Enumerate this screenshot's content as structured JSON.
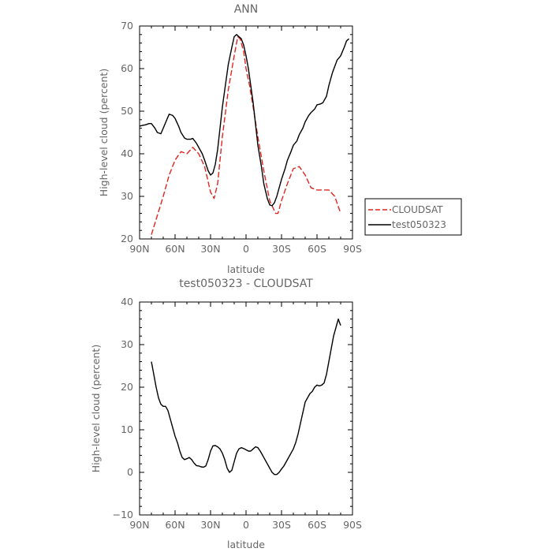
{
  "chart_data": [
    {
      "type": "line",
      "title": "ANN",
      "xlabel": "latitude",
      "ylabel": "High-level cloud (percent)",
      "xlim": [
        90,
        -90
      ],
      "ylim": [
        20,
        70
      ],
      "x_tick_values": [
        90,
        60,
        30,
        0,
        -30,
        -60,
        -90
      ],
      "x_tick_labels": [
        "90N",
        "60N",
        "30N",
        "0",
        "30S",
        "60S",
        "90S"
      ],
      "y_tick_values": [
        20,
        30,
        40,
        50,
        60,
        70
      ],
      "y_tick_labels": [
        "20",
        "30",
        "40",
        "50",
        "60",
        "70"
      ],
      "legend_position": "right",
      "series": [
        {
          "name": "CLOUDSAT",
          "color": "#e0241f",
          "dash": "dashed",
          "x": [
            80,
            75,
            70,
            65,
            60,
            55,
            50,
            45,
            40,
            35,
            30,
            27,
            24,
            20,
            15,
            10,
            7,
            5,
            2,
            0,
            -3,
            -6,
            -10,
            -15,
            -20,
            -25,
            -27,
            -30,
            -35,
            -40,
            -45,
            -50,
            -55,
            -60,
            -65,
            -70,
            -75,
            -80
          ],
          "y": [
            21,
            25.5,
            30,
            35,
            38.5,
            40.5,
            40,
            41.5,
            40,
            37,
            31,
            29.5,
            33,
            44,
            55,
            63,
            67.5,
            67,
            64,
            60,
            56,
            51,
            44,
            36,
            29,
            26,
            26,
            29,
            33,
            36.5,
            37,
            35,
            32,
            31.5,
            31.5,
            31.5,
            30,
            26
          ]
        },
        {
          "name": "test050323",
          "color": "#000000",
          "dash": "solid",
          "x": [
            90,
            87,
            85,
            82,
            80,
            77,
            75,
            72,
            70,
            67,
            65,
            62,
            60,
            57,
            55,
            52,
            50,
            47,
            45,
            42,
            40,
            37,
            35,
            32,
            30,
            28,
            26,
            24,
            22,
            20,
            17,
            15,
            12,
            10,
            8,
            6,
            4,
            2,
            0,
            -2,
            -4,
            -6,
            -8,
            -10,
            -13,
            -15,
            -18,
            -20,
            -22,
            -24,
            -26,
            -28,
            -30,
            -33,
            -35,
            -38,
            -40,
            -43,
            -45,
            -48,
            -50,
            -53,
            -55,
            -58,
            -60,
            -63,
            -65,
            -68,
            -70,
            -73,
            -75,
            -77,
            -80,
            -83,
            -85,
            -87
          ],
          "y": [
            46.5,
            46.7,
            46.8,
            47.1,
            47.1,
            46,
            45,
            44.7,
            46,
            48,
            49.3,
            49,
            48.3,
            46.5,
            45,
            43.7,
            43.4,
            43.4,
            43.6,
            42.5,
            41.5,
            40,
            38.5,
            36,
            35,
            35.5,
            37.5,
            41,
            46,
            51,
            57,
            61,
            65,
            67.5,
            68,
            67.5,
            67,
            65.5,
            63,
            60,
            56,
            52,
            47,
            42,
            37,
            33,
            29.5,
            28,
            27.8,
            28.5,
            30,
            32,
            34,
            36.5,
            38.5,
            40.5,
            42,
            43,
            44.5,
            46,
            47.5,
            49,
            49.7,
            50.5,
            51.5,
            51.7,
            52,
            53.5,
            56,
            59,
            60.5,
            62,
            63,
            65,
            66.5,
            67
          ]
        }
      ]
    },
    {
      "type": "line",
      "title": "test050323 - CLOUDSAT",
      "xlabel": "latitude",
      "ylabel": "High-level cloud (percent)",
      "xlim": [
        90,
        -90
      ],
      "ylim": [
        -10,
        40
      ],
      "x_tick_values": [
        90,
        60,
        30,
        0,
        -30,
        -60,
        -90
      ],
      "x_tick_labels": [
        "90N",
        "60N",
        "30N",
        "0",
        "30S",
        "60S",
        "90S"
      ],
      "y_tick_values": [
        -10,
        0,
        10,
        20,
        30,
        40
      ],
      "y_tick_labels": [
        "−10",
        "0",
        "10",
        "20",
        "30",
        "40"
      ],
      "series": [
        {
          "color": "#000000",
          "dash": "solid",
          "x": [
            80,
            78,
            76,
            74,
            72,
            70,
            68,
            66,
            64,
            62,
            60,
            58,
            56,
            54,
            52,
            50,
            48,
            46,
            44,
            42,
            40,
            38,
            36,
            34,
            32,
            30,
            28,
            26,
            24,
            22,
            20,
            18,
            16,
            14,
            12,
            10,
            8,
            6,
            4,
            2,
            0,
            -2,
            -4,
            -6,
            -8,
            -10,
            -12,
            -14,
            -16,
            -18,
            -20,
            -22,
            -24,
            -26,
            -28,
            -30,
            -32,
            -34,
            -36,
            -38,
            -40,
            -42,
            -44,
            -46,
            -48,
            -50,
            -52,
            -54,
            -56,
            -58,
            -60,
            -62,
            -64,
            -66,
            -68,
            -70,
            -72,
            -74,
            -76,
            -78,
            -80
          ],
          "y": [
            26,
            23,
            20,
            17.5,
            16,
            15.5,
            15.5,
            14.5,
            12.5,
            10.5,
            8.5,
            7,
            5,
            3.5,
            3,
            3.2,
            3.5,
            3,
            2.2,
            1.6,
            1.5,
            1.3,
            1.2,
            1.5,
            3,
            5,
            6.2,
            6.3,
            6,
            5.5,
            4.5,
            3,
            1,
            0,
            0.5,
            2.5,
            4.5,
            5.5,
            5.8,
            5.6,
            5.3,
            5,
            5,
            5.5,
            6,
            5.8,
            5,
            4,
            3,
            2,
            1,
            0,
            -0.5,
            -0.5,
            0,
            0.8,
            1.5,
            2.5,
            3.5,
            4.5,
            5.5,
            7,
            9,
            11.5,
            14,
            16.5,
            17.5,
            18.5,
            19,
            20,
            20.5,
            20.3,
            20.5,
            21,
            23,
            26,
            29,
            32,
            34,
            36,
            34.5
          ]
        }
      ]
    }
  ]
}
